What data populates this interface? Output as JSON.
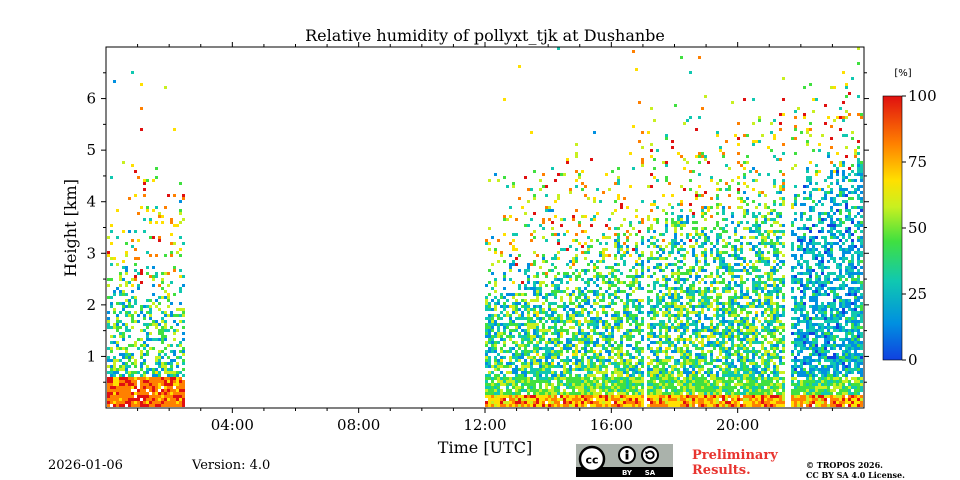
{
  "chart_data": {
    "type": "heatmap",
    "title": "Relative humidity of pollyxt_tjk at Dushanbe",
    "xlabel": "Time [UTC]",
    "ylabel": "Height [km]",
    "xlim_hours": [
      0,
      24
    ],
    "ylim_km": [
      0,
      7
    ],
    "x_ticks": [
      {
        "hour": 4,
        "label": "04:00"
      },
      {
        "hour": 8,
        "label": "08:00"
      },
      {
        "hour": 12,
        "label": "12:00"
      },
      {
        "hour": 16,
        "label": "16:00"
      },
      {
        "hour": 20,
        "label": "20:00"
      }
    ],
    "y_ticks": [
      {
        "km": 1,
        "label": "1"
      },
      {
        "km": 2,
        "label": "2"
      },
      {
        "km": 3,
        "label": "3"
      },
      {
        "km": 4,
        "label": "4"
      },
      {
        "km": 5,
        "label": "5"
      },
      {
        "km": 6,
        "label": "6"
      }
    ],
    "colorbar": {
      "unit": "[%]",
      "range": [
        0,
        100
      ],
      "ticks": [
        {
          "value": 0,
          "label": "0"
        },
        {
          "value": 25,
          "label": "25"
        },
        {
          "value": 50,
          "label": "50"
        },
        {
          "value": 75,
          "label": "75"
        },
        {
          "value": 100,
          "label": "100"
        }
      ],
      "colors": [
        "#1040e0",
        "#0090e0",
        "#10c8b0",
        "#40e040",
        "#c8f020",
        "#ffe000",
        "#ff8000",
        "#e01010"
      ]
    },
    "measurement_periods_hours": [
      [
        0.0,
        2.5
      ],
      [
        12.0,
        24.0
      ]
    ],
    "data_gaps_hours": [
      [
        16.95,
        17.1
      ],
      [
        21.45,
        21.6
      ]
    ],
    "description_note": "approx. humidity structure: near-surface layer 75-100%, mid layer 25-50%, aloft sparse"
  },
  "footer": {
    "date": "2026-01-06",
    "version": "Version: 4.0",
    "cc_label_by": "BY",
    "cc_label_sa": "SA",
    "cc_label_cc": "cc",
    "preliminary": "Preliminary Results.",
    "copyright_line1": "© TROPOS 2026.",
    "copyright_line2": "CC BY SA 4.0 License."
  }
}
